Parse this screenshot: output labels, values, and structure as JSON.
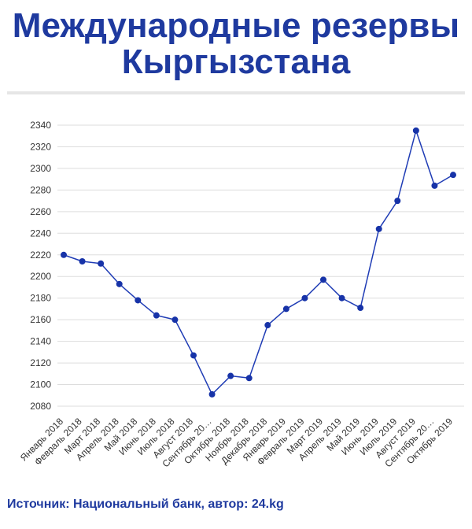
{
  "header": {
    "title_line1": "Международные резервы",
    "title_line2": "Кыргызстана"
  },
  "footer": {
    "source": "Источник: Национальный банк, автор: 24.kg"
  },
  "colors": {
    "title": "#1f3a9f",
    "line": "#1f3cb5",
    "point": "#1733a8",
    "grid": "#dddddd",
    "axis_text": "#333333"
  },
  "chart_data": {
    "type": "line",
    "title": "Международные резервы Кыргызстана",
    "xlabel": "",
    "ylabel": "",
    "grid": true,
    "legend": "none",
    "ylim": [
      2080,
      2340
    ],
    "yticks": [
      2080,
      2100,
      2120,
      2140,
      2160,
      2180,
      2200,
      2220,
      2240,
      2260,
      2280,
      2300,
      2320,
      2340
    ],
    "categories": [
      "Январь 2018",
      "Февраль 2018",
      "Март 2018",
      "Апрель 2018",
      "Май 2018",
      "Июнь 2018",
      "Июль 2018",
      "Август 2018",
      "Сентябрь 20…",
      "Октябрь 2018",
      "Ноябрь 2018",
      "Декабрь 2018",
      "Январь 2019",
      "Февраль 2019",
      "Март 2019",
      "Апрель 2019",
      "Май 2019",
      "Июнь 2019",
      "Июль 2019",
      "Август 2019",
      "Сентябрь 20…",
      "Октябрь 2019"
    ],
    "series": [
      {
        "values": [
          2220,
          2214,
          2212,
          2193,
          2178,
          2164,
          2160,
          2127,
          2091,
          2108,
          2106,
          2155,
          2170,
          2180,
          2197,
          2180,
          2171,
          2244,
          2270,
          2335,
          2284,
          2294
        ]
      }
    ]
  }
}
